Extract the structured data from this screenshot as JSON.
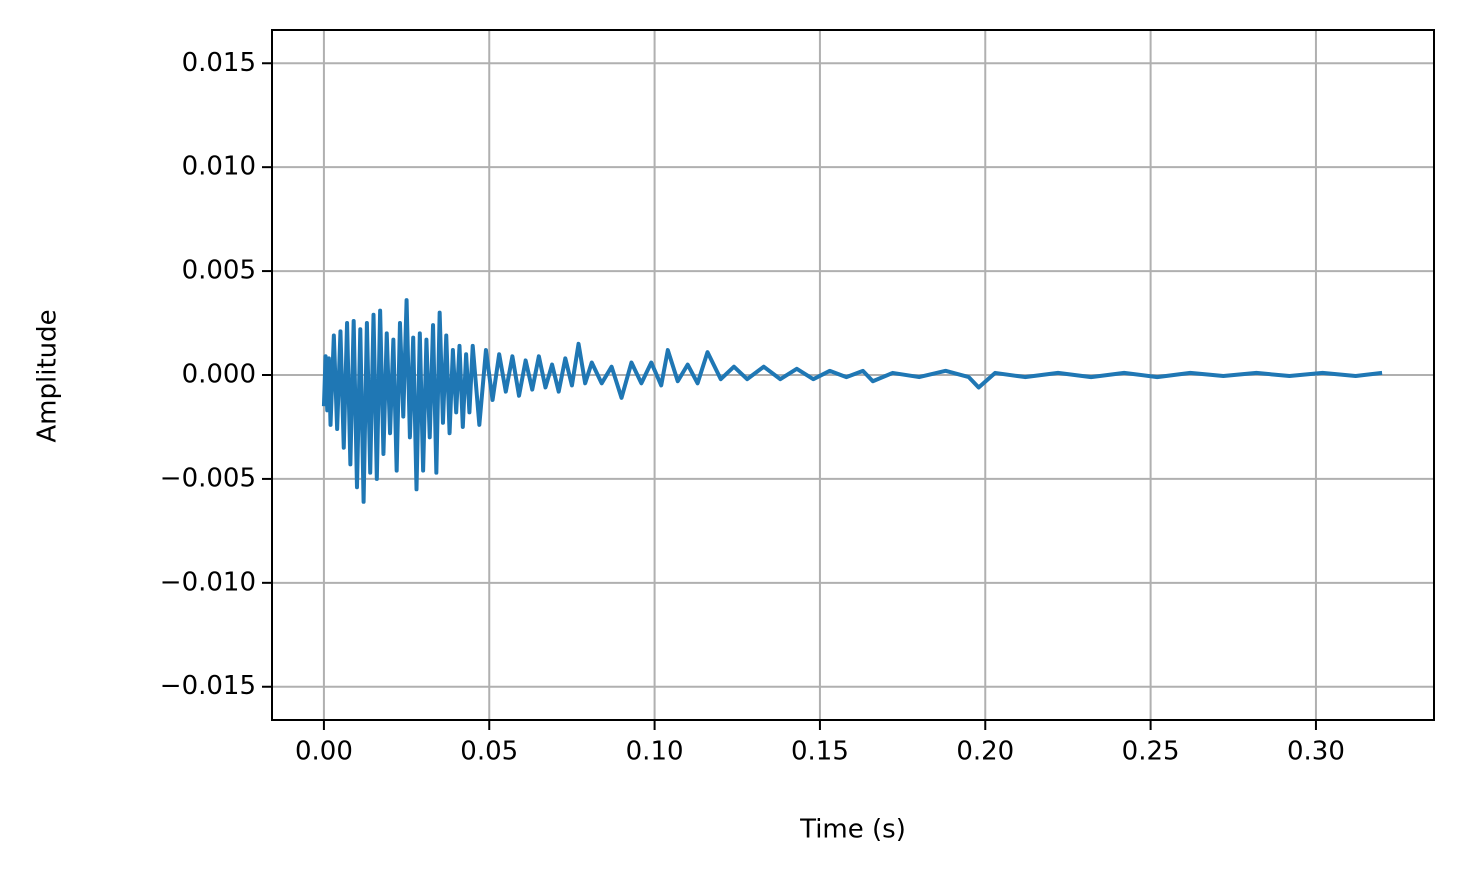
{
  "chart_data": {
    "type": "line",
    "xlabel": "Time (s)",
    "ylabel": "Amplitude",
    "x": [
      0,
      0.0005,
      0.001,
      0.0015,
      0.002,
      0.003,
      0.004,
      0.005,
      0.006,
      0.007,
      0.008,
      0.009,
      0.01,
      0.011,
      0.012,
      0.013,
      0.014,
      0.015,
      0.016,
      0.017,
      0.018,
      0.019,
      0.02,
      0.021,
      0.022,
      0.023,
      0.024,
      0.025,
      0.026,
      0.027,
      0.028,
      0.029,
      0.03,
      0.031,
      0.032,
      0.033,
      0.034,
      0.035,
      0.036,
      0.037,
      0.038,
      0.039,
      0.04,
      0.041,
      0.042,
      0.043,
      0.044,
      0.045,
      0.047,
      0.049,
      0.051,
      0.053,
      0.055,
      0.057,
      0.059,
      0.061,
      0.063,
      0.065,
      0.067,
      0.069,
      0.071,
      0.073,
      0.075,
      0.077,
      0.079,
      0.081,
      0.084,
      0.087,
      0.09,
      0.093,
      0.096,
      0.099,
      0.102,
      0.104,
      0.107,
      0.11,
      0.113,
      0.116,
      0.12,
      0.124,
      0.128,
      0.133,
      0.138,
      0.143,
      0.148,
      0.153,
      0.158,
      0.163,
      0.166,
      0.172,
      0.18,
      0.188,
      0.195,
      0.198,
      0.203,
      0.212,
      0.222,
      0.232,
      0.242,
      0.252,
      0.262,
      0.272,
      0.282,
      0.292,
      0.302,
      0.312,
      0.32
    ],
    "series": [
      {
        "color": "#1f77b4",
        "values": [
          -0.0015,
          0.0009,
          -0.0017,
          0.0008,
          -0.0024,
          0.0019,
          -0.0026,
          0.0021,
          -0.0035,
          0.0025,
          -0.0043,
          0.0026,
          -0.0054,
          0.0022,
          -0.0061,
          0.0025,
          -0.0047,
          0.0029,
          -0.005,
          0.0031,
          -0.0038,
          0.002,
          -0.0028,
          0.0017,
          -0.0046,
          0.0025,
          -0.002,
          0.0036,
          -0.003,
          0.0018,
          -0.0055,
          0.002,
          -0.0046,
          0.0017,
          -0.003,
          0.0024,
          -0.0047,
          0.003,
          -0.0023,
          0.0019,
          -0.0028,
          0.0012,
          -0.0018,
          0.0014,
          -0.0025,
          0.001,
          -0.0018,
          0.0014,
          -0.0024,
          0.0012,
          -0.0012,
          0.001,
          -0.0008,
          0.0009,
          -0.001,
          0.0007,
          -0.0007,
          0.0009,
          -0.0006,
          0.0005,
          -0.0008,
          0.0008,
          -0.0005,
          0.0015,
          -0.0004,
          0.0006,
          -0.0004,
          0.0004,
          -0.0011,
          0.0006,
          -0.0004,
          0.0006,
          -0.0005,
          0.0012,
          -0.0003,
          0.0005,
          -0.0004,
          0.0011,
          -0.0002,
          0.0004,
          -0.0002,
          0.0004,
          -0.0002,
          0.0003,
          -0.0002,
          0.0002,
          -0.0001,
          0.0002,
          -0.0003,
          0.0001,
          -0.0001,
          0.0002,
          -0.0001,
          -0.0006,
          0.0001,
          -0.0001,
          0.0001,
          -0.0001,
          0.0001,
          -0.0001,
          0.0001,
          -5e-05,
          0.0001,
          -5e-05,
          0.0001,
          -5e-05,
          0.0001
        ]
      }
    ],
    "xlim": [
      -0.0157,
      0.3357
    ],
    "xticks": [
      {
        "value": 0,
        "label": "0.00"
      },
      {
        "value": 0.05,
        "label": "0.05"
      },
      {
        "value": 0.1,
        "label": "0.10"
      },
      {
        "value": 0.15,
        "label": "0.15"
      },
      {
        "value": 0.2,
        "label": "0.20"
      },
      {
        "value": 0.25,
        "label": "0.25"
      },
      {
        "value": 0.3,
        "label": "0.30"
      }
    ],
    "ylim": [
      -0.0166,
      0.0166
    ],
    "yticks": [
      {
        "value": -0.015,
        "label": "−0.015"
      },
      {
        "value": -0.01,
        "label": "−0.010"
      },
      {
        "value": -0.005,
        "label": "−0.005"
      },
      {
        "value": 0,
        "label": "0.000"
      },
      {
        "value": 0.005,
        "label": "0.005"
      },
      {
        "value": 0.01,
        "label": "0.010"
      },
      {
        "value": 0.015,
        "label": "0.015"
      }
    ],
    "grid": true
  }
}
